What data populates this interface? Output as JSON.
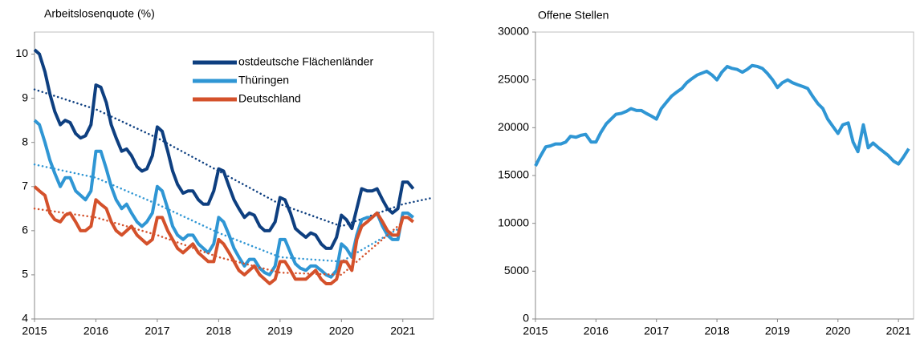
{
  "chart_data": [
    {
      "type": "line",
      "title": "Arbeitslosenquote (%)",
      "xlim": [
        2015,
        2021.5
      ],
      "ylim": [
        4,
        10.5
      ],
      "xticks": [
        2015,
        2016,
        2017,
        2018,
        2019,
        2020,
        2021
      ],
      "yticks": [
        4,
        5,
        6,
        7,
        8,
        9,
        10
      ],
      "grid": false,
      "legend": "upper right",
      "x": [
        2015,
        2015.08,
        2015.17,
        2015.25,
        2015.33,
        2015.42,
        2015.5,
        2015.58,
        2015.67,
        2015.75,
        2015.83,
        2015.92,
        2016,
        2016.08,
        2016.17,
        2016.25,
        2016.33,
        2016.42,
        2016.5,
        2016.58,
        2016.67,
        2016.75,
        2016.83,
        2016.92,
        2017,
        2017.08,
        2017.17,
        2017.25,
        2017.33,
        2017.42,
        2017.5,
        2017.58,
        2017.67,
        2017.75,
        2017.83,
        2017.92,
        2018,
        2018.08,
        2018.17,
        2018.25,
        2018.33,
        2018.42,
        2018.5,
        2018.58,
        2018.67,
        2018.75,
        2018.83,
        2018.92,
        2019,
        2019.08,
        2019.17,
        2019.25,
        2019.33,
        2019.42,
        2019.5,
        2019.58,
        2019.67,
        2019.75,
        2019.83,
        2019.92,
        2020,
        2020.08,
        2020.17,
        2020.25,
        2020.33,
        2020.42,
        2020.5,
        2020.58,
        2020.67,
        2020.75,
        2020.83,
        2020.92,
        2021,
        2021.08,
        2021.17
      ],
      "series": [
        {
          "name": "ostdeutsche Flächenländer",
          "color": "#0e3f80",
          "values": [
            10.1,
            10.0,
            9.6,
            9.1,
            8.7,
            8.4,
            8.5,
            8.45,
            8.2,
            8.1,
            8.15,
            8.4,
            9.3,
            9.25,
            8.9,
            8.4,
            8.1,
            7.8,
            7.85,
            7.7,
            7.45,
            7.35,
            7.4,
            7.7,
            8.35,
            8.25,
            7.8,
            7.35,
            7.05,
            6.85,
            6.9,
            6.9,
            6.7,
            6.6,
            6.6,
            6.9,
            7.4,
            7.35,
            7.0,
            6.7,
            6.5,
            6.3,
            6.4,
            6.35,
            6.1,
            6.0,
            6.0,
            6.2,
            6.75,
            6.7,
            6.4,
            6.05,
            5.95,
            5.85,
            5.95,
            5.9,
            5.7,
            5.6,
            5.6,
            5.85,
            6.35,
            6.25,
            6.05,
            6.5,
            6.95,
            6.9,
            6.9,
            6.95,
            6.7,
            6.5,
            6.4,
            6.5,
            7.1,
            7.1,
            6.95
          ],
          "trend_x": [
            2015,
            2016,
            2017,
            2018,
            2019,
            2020,
            2021,
            2021.5
          ],
          "trend": [
            9.2,
            8.75,
            8.1,
            7.35,
            6.6,
            6.1,
            6.6,
            6.75
          ]
        },
        {
          "name": "Thüringen",
          "color": "#2f96d4",
          "values": [
            8.5,
            8.4,
            8.0,
            7.6,
            7.3,
            7.0,
            7.2,
            7.2,
            6.9,
            6.8,
            6.7,
            6.9,
            7.8,
            7.8,
            7.4,
            7.0,
            6.7,
            6.5,
            6.6,
            6.4,
            6.2,
            6.1,
            6.2,
            6.4,
            7.0,
            6.9,
            6.5,
            6.1,
            5.9,
            5.8,
            5.9,
            5.9,
            5.7,
            5.6,
            5.5,
            5.7,
            6.3,
            6.2,
            5.9,
            5.6,
            5.4,
            5.2,
            5.35,
            5.35,
            5.15,
            5.05,
            5.0,
            5.2,
            5.8,
            5.8,
            5.5,
            5.25,
            5.15,
            5.1,
            5.2,
            5.2,
            5.1,
            5.0,
            4.95,
            5.1,
            5.7,
            5.6,
            5.4,
            5.9,
            6.25,
            6.3,
            6.3,
            6.4,
            6.1,
            5.9,
            5.8,
            5.8,
            6.4,
            6.4,
            6.3
          ],
          "trend_x": [
            2015,
            2016,
            2017,
            2018,
            2019,
            2020,
            2021
          ],
          "trend": [
            7.5,
            7.2,
            6.6,
            5.95,
            5.4,
            5.3,
            6.1
          ]
        },
        {
          "name": "Deutschland",
          "color": "#d4512b",
          "values": [
            7.0,
            6.9,
            6.8,
            6.4,
            6.25,
            6.2,
            6.35,
            6.4,
            6.2,
            6.0,
            6.0,
            6.1,
            6.7,
            6.6,
            6.5,
            6.2,
            6.0,
            5.9,
            6.0,
            6.1,
            5.9,
            5.8,
            5.7,
            5.8,
            6.3,
            6.3,
            6.0,
            5.8,
            5.6,
            5.5,
            5.6,
            5.7,
            5.5,
            5.4,
            5.3,
            5.3,
            5.8,
            5.7,
            5.5,
            5.3,
            5.1,
            5.0,
            5.1,
            5.2,
            5.0,
            4.9,
            4.8,
            4.9,
            5.3,
            5.3,
            5.1,
            4.9,
            4.9,
            4.9,
            5.0,
            5.1,
            4.9,
            4.8,
            4.8,
            4.9,
            5.3,
            5.3,
            5.1,
            5.8,
            6.1,
            6.2,
            6.3,
            6.4,
            6.2,
            6.0,
            5.9,
            5.9,
            6.3,
            6.3,
            6.2
          ],
          "trend_x": [
            2015,
            2016,
            2017,
            2018,
            2019,
            2020,
            2021
          ],
          "trend": [
            6.5,
            6.3,
            5.9,
            5.4,
            5.05,
            5.0,
            6.2
          ]
        }
      ]
    },
    {
      "type": "line",
      "title": "Offene Stellen",
      "xlim": [
        2015,
        2021.25
      ],
      "ylim": [
        0,
        30000
      ],
      "xticks": [
        2015,
        2016,
        2017,
        2018,
        2019,
        2020,
        2021
      ],
      "yticks": [
        0,
        5000,
        10000,
        15000,
        20000,
        25000,
        30000
      ],
      "grid": false,
      "x": [
        2015,
        2015.08,
        2015.17,
        2015.25,
        2015.33,
        2015.42,
        2015.5,
        2015.58,
        2015.67,
        2015.75,
        2015.83,
        2015.92,
        2016,
        2016.08,
        2016.17,
        2016.25,
        2016.33,
        2016.42,
        2016.5,
        2016.58,
        2016.67,
        2016.75,
        2016.83,
        2016.92,
        2017,
        2017.08,
        2017.17,
        2017.25,
        2017.33,
        2017.42,
        2017.5,
        2017.58,
        2017.67,
        2017.75,
        2017.83,
        2017.92,
        2018,
        2018.08,
        2018.17,
        2018.25,
        2018.33,
        2018.42,
        2018.5,
        2018.58,
        2018.67,
        2018.75,
        2018.83,
        2018.92,
        2019,
        2019.08,
        2019.17,
        2019.25,
        2019.33,
        2019.42,
        2019.5,
        2019.58,
        2019.67,
        2019.75,
        2019.83,
        2019.92,
        2020,
        2020.08,
        2020.17,
        2020.25,
        2020.33,
        2020.42,
        2020.5,
        2020.58,
        2020.67,
        2020.75,
        2020.83,
        2020.92,
        2021,
        2021.08,
        2021.17
      ],
      "series": [
        {
          "color": "#2f96d4",
          "values": [
            16000,
            17000,
            18000,
            18100,
            18300,
            18300,
            18500,
            19100,
            19000,
            19200,
            19300,
            18500,
            18500,
            19500,
            20400,
            20900,
            21400,
            21500,
            21700,
            22000,
            21800,
            21800,
            21500,
            21200,
            20900,
            22000,
            22700,
            23300,
            23700,
            24100,
            24700,
            25100,
            25500,
            25700,
            25900,
            25500,
            25000,
            25800,
            26400,
            26200,
            26100,
            25800,
            26100,
            26500,
            26400,
            26200,
            25700,
            25000,
            24200,
            24700,
            25000,
            24700,
            24500,
            24300,
            24100,
            23300,
            22500,
            22000,
            20900,
            20100,
            19400,
            20300,
            20500,
            18500,
            17500,
            20300,
            17900,
            18400,
            17900,
            17500,
            17100,
            16500,
            16200,
            16900,
            17800
          ]
        }
      ]
    }
  ]
}
